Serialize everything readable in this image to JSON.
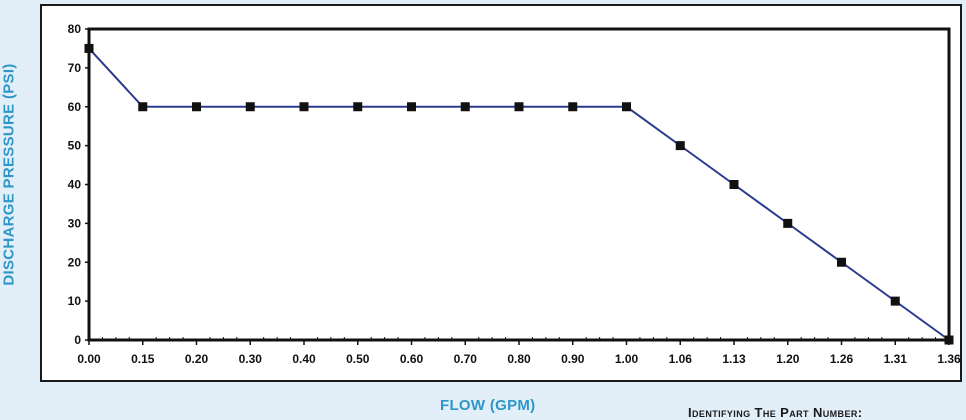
{
  "chart_data": {
    "type": "line",
    "title": "",
    "xlabel": "FLOW (GPM)",
    "ylabel": "DISCHARGE PRESSURE (PSI)",
    "categories": [
      "0.00",
      "0.15",
      "0.20",
      "0.30",
      "0.40",
      "0.50",
      "0.60",
      "0.70",
      "0.80",
      "0.90",
      "1.00",
      "1.06",
      "1.13",
      "1.20",
      "1.26",
      "1.31",
      "1.36"
    ],
    "series": [
      {
        "values": [
          75,
          60,
          60,
          60,
          60,
          60,
          60,
          60,
          60,
          60,
          60,
          50,
          40,
          30,
          20,
          10,
          0
        ]
      }
    ],
    "ylim": [
      0,
      80
    ],
    "yticks": [
      "0",
      "10",
      "20",
      "30",
      "40",
      "50",
      "60",
      "70",
      "80"
    ],
    "grid": false,
    "legend": "none",
    "line_color": "#2b3a8f",
    "marker_color": "#111111"
  },
  "footer_note": "Identifying The Part Number:"
}
